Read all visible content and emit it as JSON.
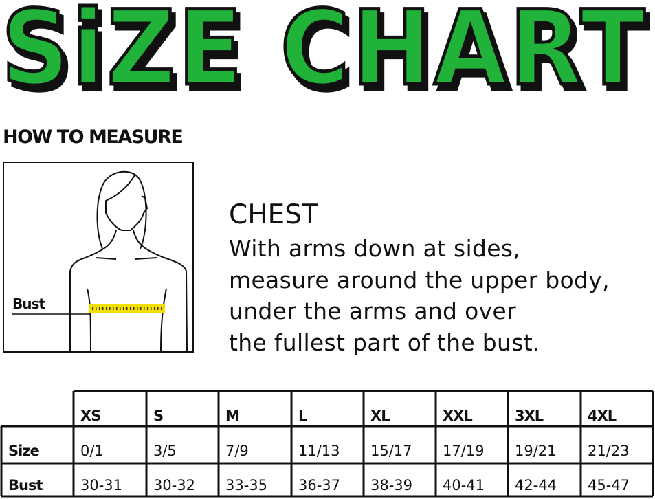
{
  "title": "SiZE CHART",
  "title_colors": {
    "fill": "#21b23a",
    "shadow": "#111111"
  },
  "how_to_measure": "HOW TO MEASURE",
  "figure": {
    "label": "Bust",
    "tape_color": "#f2df00"
  },
  "instructions": {
    "heading": "CHEST",
    "lines": [
      "With arms down at sides,",
      "measure around the upper body,",
      "under the arms and over",
      "the fullest part of the bust."
    ]
  },
  "table": {
    "columns": [
      "XS",
      "S",
      "M",
      "L",
      "XL",
      "XXL",
      "3XL",
      "4XL"
    ],
    "rows": [
      {
        "label": "Size",
        "values": [
          "0/1",
          "3/5",
          "7/9",
          "11/13",
          "15/17",
          "17/19",
          "19/21",
          "21/23"
        ]
      },
      {
        "label": "Bust",
        "values": [
          "30-31",
          "30-32",
          "33-35",
          "36-37",
          "38-39",
          "40-41",
          "42-44",
          "45-47"
        ]
      }
    ]
  }
}
